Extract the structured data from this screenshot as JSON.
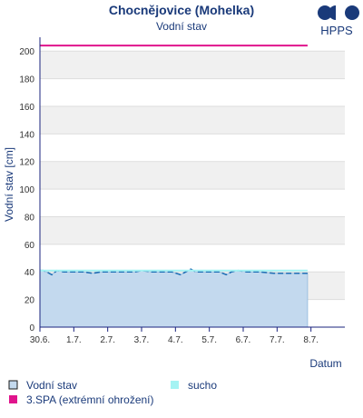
{
  "brand": {
    "label": "HPPS",
    "color": "#1a3a7a"
  },
  "chart_data": {
    "type": "area",
    "title": "Chocnějovice (Mohelka)",
    "subtitle": "Vodní stav",
    "xlabel": "Datum",
    "ylabel": "Vodní stav [cm]",
    "ylim": [
      0,
      210
    ],
    "yticks": [
      0,
      20,
      40,
      60,
      80,
      100,
      120,
      140,
      160,
      180,
      200
    ],
    "xlim": [
      0,
      9
    ],
    "xticks": [
      {
        "x": 0,
        "label": "30.6."
      },
      {
        "x": 1,
        "label": "1.7."
      },
      {
        "x": 2,
        "label": "2.7."
      },
      {
        "x": 3,
        "label": "3.7."
      },
      {
        "x": 4,
        "label": "4.7."
      },
      {
        "x": 5,
        "label": "5.7."
      },
      {
        "x": 6,
        "label": "6.7."
      },
      {
        "x": 7,
        "label": "7.7."
      },
      {
        "x": 8,
        "label": "8.7."
      }
    ],
    "grid": true,
    "series": [
      {
        "name": "Vodní stav",
        "color": "#1f6fb5",
        "fill": "#c3d9ee",
        "points": [
          [
            0.0,
            41
          ],
          [
            0.1,
            41
          ],
          [
            0.2,
            40
          ],
          [
            0.35,
            38
          ],
          [
            0.5,
            41
          ],
          [
            0.7,
            40
          ],
          [
            0.9,
            40
          ],
          [
            1.1,
            40
          ],
          [
            1.3,
            40
          ],
          [
            1.55,
            39
          ],
          [
            1.8,
            40
          ],
          [
            2.0,
            40
          ],
          [
            2.3,
            40
          ],
          [
            2.6,
            40
          ],
          [
            2.8,
            40
          ],
          [
            3.0,
            41
          ],
          [
            3.3,
            40
          ],
          [
            3.6,
            40
          ],
          [
            3.9,
            40
          ],
          [
            4.15,
            38
          ],
          [
            4.3,
            40
          ],
          [
            4.45,
            42
          ],
          [
            4.6,
            40
          ],
          [
            4.9,
            40
          ],
          [
            5.1,
            40
          ],
          [
            5.3,
            40
          ],
          [
            5.5,
            38
          ],
          [
            5.65,
            40
          ],
          [
            5.85,
            41
          ],
          [
            6.1,
            40
          ],
          [
            6.5,
            40
          ],
          [
            6.9,
            39
          ],
          [
            7.3,
            39
          ],
          [
            7.7,
            39
          ],
          [
            7.9,
            39
          ]
        ]
      },
      {
        "name": "sucho",
        "color": "#a5f3f3",
        "type": "line",
        "points": [
          [
            0.0,
            41
          ],
          [
            7.9,
            41
          ]
        ]
      },
      {
        "name": "3.SPA (extrémní ohrožení)",
        "color": "#e0148c",
        "type": "line",
        "points": [
          [
            0.0,
            204
          ],
          [
            7.9,
            204
          ]
        ]
      }
    ],
    "legend": {
      "placement": "bottom",
      "items": [
        {
          "label": "Vodní stav",
          "swatch": "#c3d9ee",
          "border": "#1a1a1a"
        },
        {
          "label": "sucho",
          "swatch": "#a5f3f3"
        },
        {
          "label": "3.SPA (extrémní ohrožení)",
          "swatch": "#e0148c"
        }
      ]
    },
    "colors": {
      "band_gray": "#f0f0f0",
      "axis": "#1a237e",
      "title": "#1a3a7a"
    }
  }
}
